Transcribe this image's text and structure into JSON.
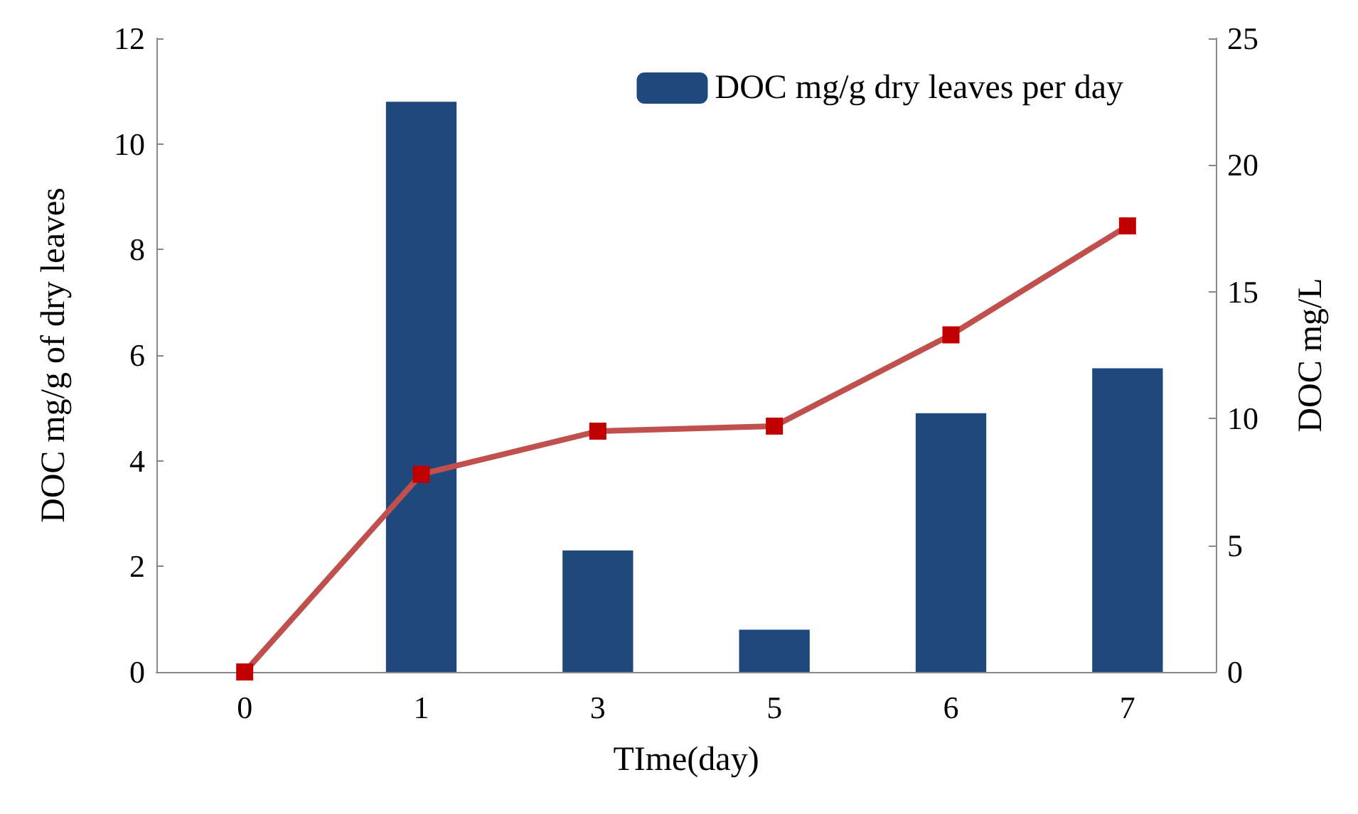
{
  "chart_data": {
    "type": "bar",
    "xlabel": "TIme(day)",
    "ylabel": "DOC mg/g of dry leaves",
    "y2label": "DOC mg/L",
    "categories": [
      "0",
      "1",
      "3",
      "5",
      "6",
      "7"
    ],
    "series": [
      {
        "name": "DOC mg/g dry leaves per day",
        "color": "#1f497d",
        "values": [
          0,
          10.8,
          2.3,
          0.8,
          4.9,
          5.75
        ]
      },
      {
        "type": "line",
        "axis": "y2",
        "color": "#c0504d",
        "marker": "square",
        "values": [
          0,
          7.8,
          9.5,
          9.7,
          13.3,
          17.6
        ]
      }
    ],
    "ylim": [
      0,
      12
    ],
    "yticks": [
      0,
      2,
      4,
      6,
      8,
      10,
      12
    ],
    "y2lim": [
      0,
      25
    ],
    "y2ticks": [
      0,
      5,
      10,
      15,
      20,
      25
    ],
    "grid": false,
    "legend": "top right"
  }
}
